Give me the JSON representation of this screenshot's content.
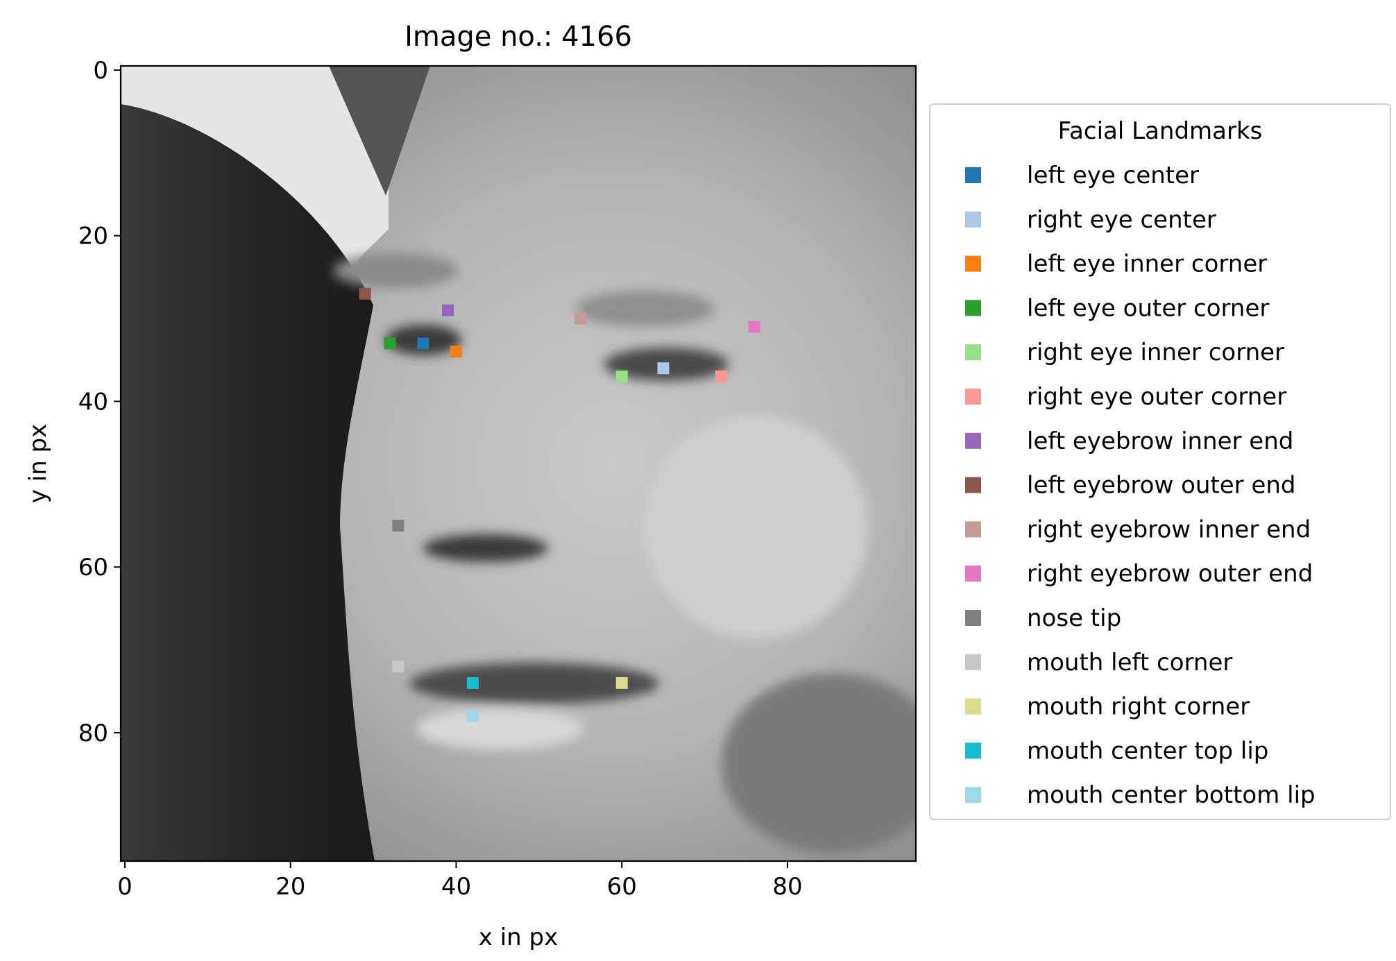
{
  "chart_data": {
    "type": "scatter",
    "title": "Image no.: 4166",
    "xlabel": "x in px",
    "ylabel": "y in px",
    "xlim": [
      -0.5,
      95.5
    ],
    "ylim": [
      95.5,
      -0.5
    ],
    "y_inverted": true,
    "x_ticks": [
      0,
      20,
      40,
      60,
      80
    ],
    "y_ticks": [
      0,
      20,
      40,
      60,
      80
    ],
    "background": "grayscale face photograph (96×96 px)",
    "legend": {
      "title": "Facial Landmarks",
      "placement": "outside-right"
    },
    "series": [
      {
        "name": "left eye center",
        "color": "#1f77b4",
        "x": 36,
        "y": 33
      },
      {
        "name": "right eye center",
        "color": "#aec7e8",
        "x": 65,
        "y": 36
      },
      {
        "name": "left eye inner corner",
        "color": "#ff7f0e",
        "x": 40,
        "y": 34
      },
      {
        "name": "left eye outer corner",
        "color": "#2ca02c",
        "x": 32,
        "y": 33
      },
      {
        "name": "right eye inner corner",
        "color": "#98df8a",
        "x": 60,
        "y": 37
      },
      {
        "name": "right eye outer corner",
        "color": "#ff9896",
        "x": 72,
        "y": 37
      },
      {
        "name": "left eyebrow inner end",
        "color": "#9467bd",
        "x": 39,
        "y": 29
      },
      {
        "name": "left eyebrow outer end",
        "color": "#8c564b",
        "x": 29,
        "y": 27
      },
      {
        "name": "right eyebrow inner end",
        "color": "#c49c94",
        "x": 55,
        "y": 30
      },
      {
        "name": "right eyebrow outer end",
        "color": "#e377c2",
        "x": 76,
        "y": 31
      },
      {
        "name": "nose tip",
        "color": "#7f7f7f",
        "x": 33,
        "y": 55
      },
      {
        "name": "mouth left corner",
        "color": "#c7c7c7",
        "x": 33,
        "y": 72
      },
      {
        "name": "mouth right corner",
        "color": "#dbdb8d",
        "x": 60,
        "y": 74
      },
      {
        "name": "mouth center top lip",
        "color": "#17becf",
        "x": 42,
        "y": 74
      },
      {
        "name": "mouth center bottom lip",
        "color": "#9edae5",
        "x": 42,
        "y": 78
      }
    ]
  }
}
